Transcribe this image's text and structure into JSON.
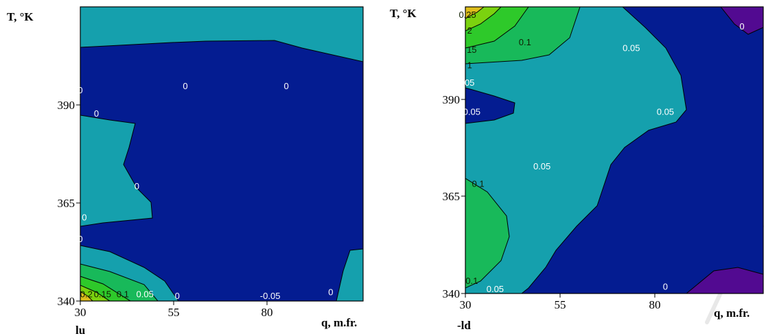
{
  "chart_data": [
    {
      "type": "contour",
      "panel_caption": "lu",
      "xlabel": "q, m.fr.",
      "ylabel": "T, °K",
      "x_ticks": [
        "30",
        "55",
        "80"
      ],
      "y_ticks": [
        "390",
        "365",
        "340"
      ],
      "xlim": [
        30,
        100
      ],
      "ylim": [
        340,
        395
      ],
      "levels": [
        "0",
        "-0.05",
        "0.05",
        "0.1",
        "0.15",
        "0.2"
      ],
      "contour_labels": [
        {
          "text": "0",
          "x": 56,
          "y": 394
        },
        {
          "text": "0",
          "x": 81,
          "y": 394
        },
        {
          "text": "0",
          "x": 30,
          "y": 393
        },
        {
          "text": "0",
          "x": 34,
          "y": 387
        },
        {
          "text": "0",
          "x": 44,
          "y": 368.5
        },
        {
          "text": "0",
          "x": 31,
          "y": 360.5
        },
        {
          "text": "0",
          "x": 30,
          "y": 355
        },
        {
          "text": "0",
          "x": 54,
          "y": 340.5
        },
        {
          "text": "-0.05",
          "x": 77,
          "y": 340.5
        },
        {
          "text": "0",
          "x": 92,
          "y": 341.5
        },
        {
          "text": "0.05",
          "x": 46,
          "y": 341
        },
        {
          "text": "0.1",
          "x": 40.5,
          "y": 341
        },
        {
          "text": "0.15",
          "x": 35.5,
          "y": 341
        },
        {
          "text": "0.2",
          "x": 31.5,
          "y": 341
        }
      ]
    },
    {
      "type": "contour",
      "panel_caption": "-ld",
      "xlabel": "q, m.fr.",
      "ylabel": "T, °K",
      "x_ticks": [
        "30",
        "55",
        "80"
      ],
      "y_ticks": [
        "390",
        "365",
        "340"
      ],
      "xlim": [
        30,
        100
      ],
      "ylim": [
        340,
        395
      ],
      "levels": [
        "0",
        "0.05",
        "0.1",
        "0.15",
        "0.2",
        "0.25"
      ],
      "contour_labels": [
        {
          "text": "0",
          "x": 95,
          "y": 408
        },
        {
          "text": "0.1",
          "x": 44,
          "y": 404
        },
        {
          "text": "0.05",
          "x": 69,
          "y": 402.5
        },
        {
          "text": "0.25",
          "x": 30.5,
          "y": 411
        },
        {
          "text": "2",
          "x": 31,
          "y": 407
        },
        {
          "text": "15",
          "x": 31.5,
          "y": 402
        },
        {
          "text": "1",
          "x": 31,
          "y": 398
        },
        {
          "text": "05",
          "x": 31,
          "y": 393.5
        },
        {
          "text": "0.05",
          "x": 31.5,
          "y": 386
        },
        {
          "text": "0.05",
          "x": 77,
          "y": 386
        },
        {
          "text": "0.1",
          "x": 33,
          "y": 367.5
        },
        {
          "text": "0.05",
          "x": 48,
          "y": 372
        },
        {
          "text": "0.1",
          "x": 31.5,
          "y": 342.5
        },
        {
          "text": "0.05",
          "x": 37,
          "y": 340.3
        },
        {
          "text": "0",
          "x": 77,
          "y": 341
        }
      ]
    }
  ]
}
